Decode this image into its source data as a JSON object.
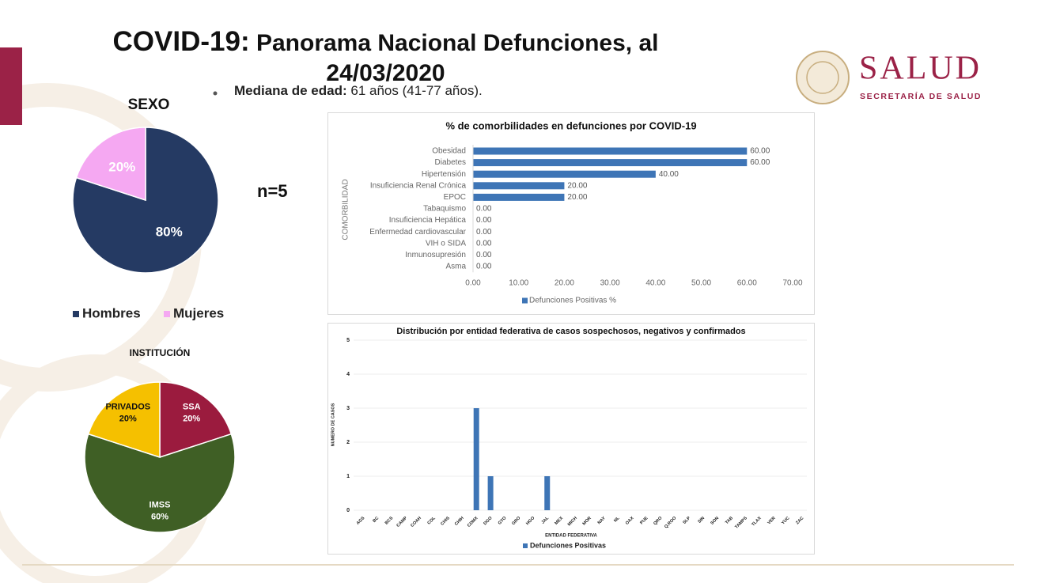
{
  "header": {
    "title_lead": "COVID-19:",
    "title": "Panorama Nacional Defunciones, al 24/03/2020"
  },
  "median": {
    "label": "Mediana de edad:",
    "text": "61 años (41-77 años)."
  },
  "logo": {
    "name": "SALUD",
    "subtitle": "SECRETARÍA DE SALUD"
  },
  "n_label": "n=5",
  "chart_data": [
    {
      "type": "pie",
      "title": "SEXO",
      "categories": [
        "Hombres",
        "Mujeres"
      ],
      "values": [
        80,
        20
      ],
      "value_labels": [
        "80%",
        "20%"
      ],
      "colors": [
        "#253a63",
        "#f5a8f2"
      ],
      "legend": "bottom"
    },
    {
      "type": "pie",
      "title": "INSTITUCIÓN",
      "categories": [
        "SSA",
        "IMSS",
        "PRIVADOS"
      ],
      "values": [
        20,
        60,
        20
      ],
      "value_labels": [
        "20%",
        "60%",
        "20%"
      ],
      "colors": [
        "#9b1b3e",
        "#3f5f25",
        "#f5c000"
      ]
    },
    {
      "type": "bar",
      "orientation": "horizontal",
      "title": "% de comorbilidades en defunciones por COVID-19",
      "y_label": "COMORBILIDAD",
      "categories": [
        "Obesidad",
        "Diabetes",
        "Hipertensión",
        "Insuficiencia Renal Crónica",
        "EPOC",
        "Tabaquismo",
        "Insuficiencia Hepática",
        "Enfermedad cardiovascular",
        "VIH o SIDA",
        "Inmunosupresión",
        "Asma"
      ],
      "series": [
        {
          "name": "Defunciones Positivas %",
          "color": "#3e75b6",
          "values": [
            60,
            60,
            40,
            20,
            20,
            0,
            0,
            0,
            0,
            0,
            0
          ],
          "value_labels": [
            "60.00",
            "60.00",
            "40.00",
            "20.00",
            "20.00",
            "0.00",
            "0.00",
            "0.00",
            "0.00",
            "0.00",
            "0.00"
          ]
        }
      ],
      "xlim": [
        0,
        70
      ],
      "xticks": [
        {
          "value": 0,
          "label": "0.00"
        },
        {
          "value": 10,
          "label": "10.00"
        },
        {
          "value": 20,
          "label": "20.00"
        },
        {
          "value": 30,
          "label": "30.00"
        },
        {
          "value": 40,
          "label": "40.00"
        },
        {
          "value": 50,
          "label": "50.00"
        },
        {
          "value": 60,
          "label": "60.00"
        },
        {
          "value": 70,
          "label": "70.00"
        }
      ],
      "legend": "bottom"
    },
    {
      "type": "bar",
      "orientation": "vertical",
      "title": "Distribución por entidad federativa de casos sospechosos, negativos y confirmados",
      "x_label": "ENTIDAD FEDERATIVA",
      "y_label": "NUMERO DE CASOS",
      "categories": [
        "AGS",
        "BC",
        "BCS",
        "CAMP",
        "COAH",
        "COL",
        "CHIS",
        "CHIH",
        "CDMX",
        "DGO",
        "GTO",
        "GRO",
        "HGO",
        "JAL",
        "MEX",
        "MICH",
        "MOR",
        "NAY",
        "NL",
        "OAX",
        "PUE",
        "QRO",
        "Q.ROO",
        "SLP",
        "SIN",
        "SON",
        "TAB",
        "TAMPS",
        "TLAX",
        "VER",
        "YUC",
        "ZAC"
      ],
      "series": [
        {
          "name": "Defunciones Positivas",
          "color": "#3e75b6",
          "values": [
            0,
            0,
            0,
            0,
            0,
            0,
            0,
            0,
            3,
            1,
            0,
            0,
            0,
            1,
            0,
            0,
            0,
            0,
            0,
            0,
            0,
            0,
            0,
            0,
            0,
            0,
            0,
            0,
            0,
            0,
            0,
            0
          ]
        }
      ],
      "ylim": [
        0,
        5
      ],
      "yticks": [
        0,
        1,
        2,
        3,
        4,
        5
      ],
      "grid": true,
      "legend": "bottom"
    }
  ]
}
